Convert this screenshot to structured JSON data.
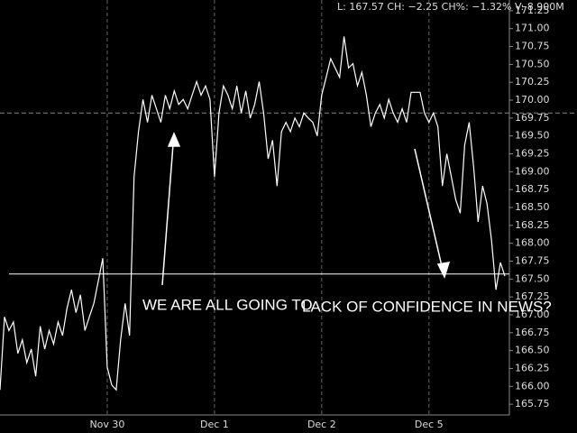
{
  "chart_data": {
    "type": "line",
    "header": "L: 167.57 CH: −2.25 CH%: −1.32% V: 8.900M",
    "annotations": [
      "WE ARE ALL GOING TO",
      "LACK OF CONFIDENCE IN NEWS?"
    ],
    "hlines": [
      167.57,
      169.82
    ],
    "color": "#ffffff",
    "x": [
      0,
      1,
      2,
      3,
      4,
      5,
      6,
      7,
      8,
      9,
      10,
      11,
      12,
      13,
      14,
      15,
      16,
      17,
      18,
      19,
      20,
      21,
      22,
      23,
      24,
      25,
      26,
      27,
      28,
      29,
      30,
      31,
      32,
      33,
      34,
      35,
      36,
      37,
      38,
      39,
      40,
      41,
      42,
      43,
      44,
      45,
      46,
      47,
      48,
      49,
      50,
      51,
      52,
      53,
      54,
      55,
      56,
      57,
      58,
      59,
      60,
      61,
      62,
      63,
      64,
      65,
      66,
      67,
      68,
      69,
      70,
      71,
      72,
      73,
      74,
      75,
      76,
      77,
      78,
      79,
      80,
      81,
      82,
      83,
      84,
      85,
      86,
      87,
      88,
      89,
      90,
      91,
      92,
      93,
      94,
      95,
      96,
      97,
      98,
      99,
      100,
      101,
      102,
      103,
      104,
      105,
      106,
      107,
      108,
      109,
      110,
      111,
      112,
      113
    ],
    "values": [
      165.95,
      166.97,
      166.78,
      166.9,
      166.46,
      166.65,
      166.33,
      166.52,
      166.14,
      166.84,
      166.52,
      166.78,
      166.59,
      166.9,
      166.71,
      167.09,
      167.35,
      167.03,
      167.28,
      166.78,
      166.97,
      167.16,
      167.47,
      167.79,
      166.27,
      166.02,
      165.95,
      166.65,
      167.16,
      166.71,
      168.93,
      169.56,
      170.01,
      169.69,
      170.07,
      169.88,
      169.69,
      170.07,
      169.88,
      170.13,
      169.94,
      170.01,
      169.88,
      170.07,
      170.26,
      170.07,
      170.2,
      170.01,
      168.93,
      169.82,
      170.2,
      170.07,
      169.88,
      170.2,
      169.82,
      170.13,
      169.75,
      169.94,
      170.26,
      169.82,
      169.18,
      169.44,
      168.8,
      169.56,
      169.69,
      169.56,
      169.75,
      169.63,
      169.82,
      169.75,
      169.69,
      169.5,
      170.07,
      170.32,
      170.58,
      170.45,
      170.32,
      170.89,
      170.45,
      170.51,
      170.2,
      170.39,
      170.07,
      169.63,
      169.82,
      169.94,
      169.75,
      170.01,
      169.82,
      169.69,
      169.88,
      169.69,
      170.11,
      170.11,
      170.11,
      169.82,
      169.69,
      169.82,
      169.63,
      168.8,
      169.25,
      168.93,
      168.61,
      168.42,
      169.37,
      169.69,
      169.06,
      168.3,
      168.8,
      168.55,
      168.04,
      167.35,
      167.73,
      167.54
    ],
    "xlim": [
      0,
      114
    ],
    "xticks": [
      {
        "value": 24,
        "label": "Nov 30"
      },
      {
        "value": 48,
        "label": "Dec 1"
      },
      {
        "value": 72,
        "label": "Dec 2"
      },
      {
        "value": 96,
        "label": "Dec 5"
      }
    ],
    "ylim": [
      165.6,
      171.4
    ],
    "yticks": [
      165.75,
      {
        "value": 166,
        "label": "166.00"
      },
      166.25,
      {
        "value": 166.5,
        "label": "166.50"
      },
      166.75,
      {
        "value": 167,
        "label": "167.00"
      },
      167.25,
      {
        "value": 167.5,
        "label": "167.50"
      },
      167.75,
      {
        "value": 168,
        "label": "168.00"
      },
      168.25,
      {
        "value": 168.5,
        "label": "168.50"
      },
      168.75,
      {
        "value": 169,
        "label": "169.00"
      },
      169.25,
      {
        "value": 169.5,
        "label": "169.50"
      },
      169.75,
      {
        "value": 170,
        "label": "170.00"
      },
      170.25,
      {
        "value": 170.5,
        "label": "170.50"
      },
      170.75,
      {
        "value": 171,
        "label": "171.00"
      },
      171.25
    ]
  }
}
